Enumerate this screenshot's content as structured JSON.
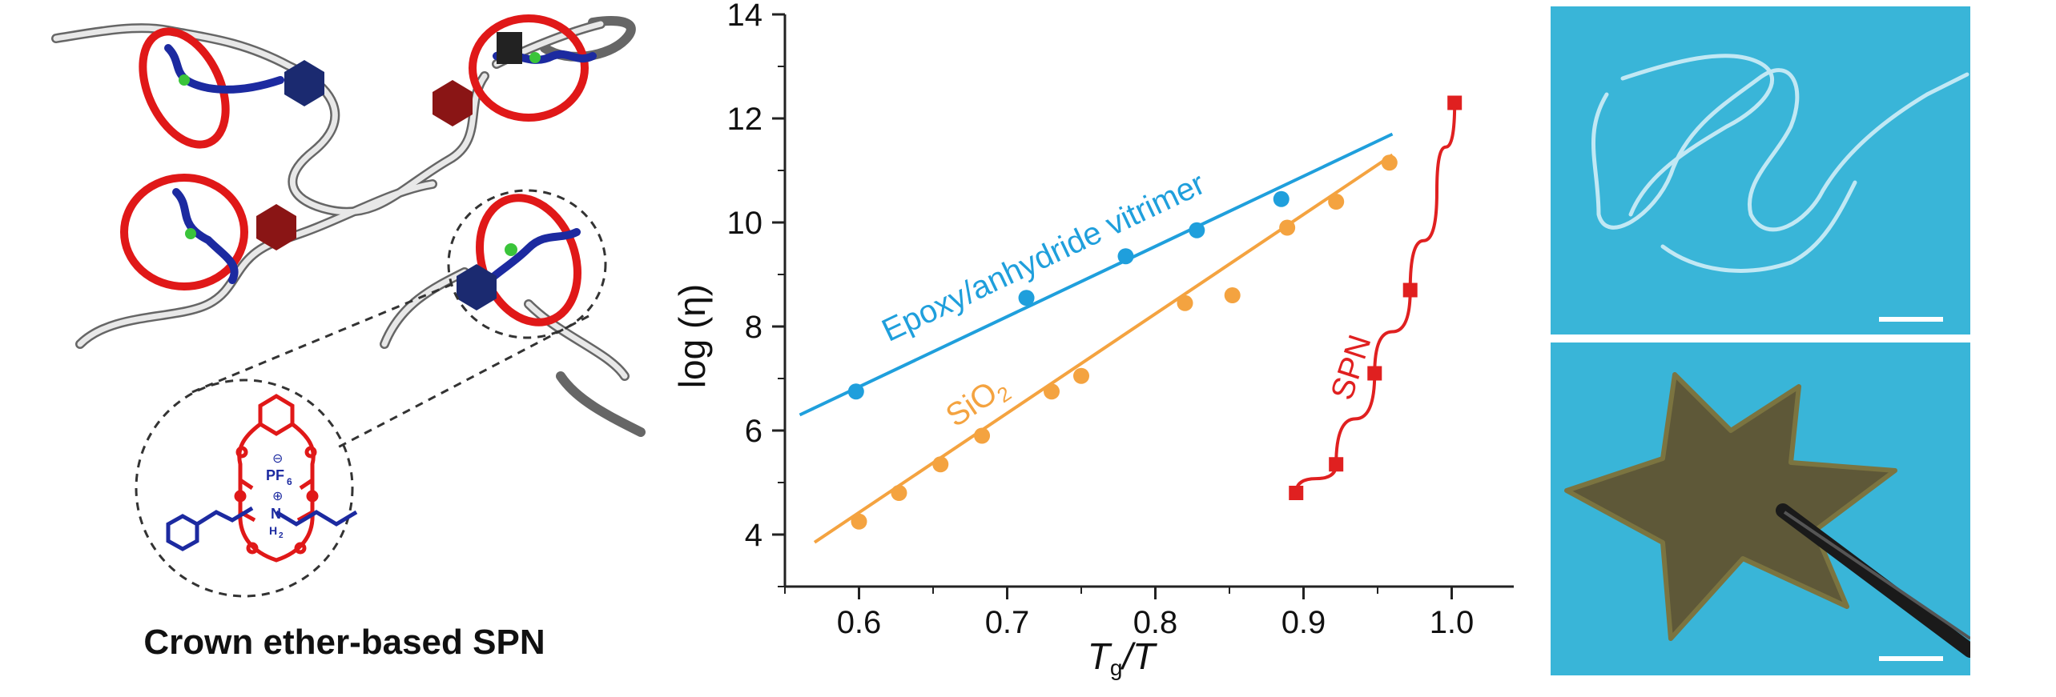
{
  "left_panel": {
    "caption": "Crown ether-based SPN",
    "inset_labels": {
      "anion": "PF",
      "anion_sub": "6",
      "anion_charge": "⊖",
      "cation": "N",
      "cation_h": "H",
      "cation_sub": "2",
      "cation_charge": "⊕"
    }
  },
  "chart_data": {
    "type": "scatter",
    "xlabel": "Tg/T",
    "xlabel_main": "T",
    "xlabel_sub": "g",
    "xlabel_tail": "/T",
    "ylabel": "log (η)",
    "xlim": [
      0.55,
      1.05
    ],
    "ylim": [
      3,
      14
    ],
    "x_ticks": [
      "0.6",
      "0.7",
      "0.8",
      "0.9",
      "1.0"
    ],
    "x_tick_values": [
      0.6,
      0.7,
      0.8,
      0.9,
      1.0
    ],
    "y_ticks": [
      "4",
      "6",
      "8",
      "10",
      "12",
      "14"
    ],
    "y_tick_values": [
      4,
      6,
      8,
      10,
      12,
      14
    ],
    "grid": false,
    "series": [
      {
        "name": "Epoxy/anhydride vitrimer",
        "color": "#1f9fdc",
        "marker": "circle",
        "points": [
          [
            0.598,
            6.75
          ],
          [
            0.713,
            8.55
          ],
          [
            0.78,
            9.35
          ],
          [
            0.828,
            9.85
          ],
          [
            0.885,
            10.45
          ]
        ],
        "fit": [
          [
            0.56,
            6.3
          ],
          [
            0.96,
            11.7
          ]
        ]
      },
      {
        "name": "SiO2",
        "name_main": "SiO",
        "name_sub": "2",
        "color": "#f4a340",
        "marker": "circle",
        "points": [
          [
            0.6,
            4.25
          ],
          [
            0.627,
            4.8
          ],
          [
            0.655,
            5.35
          ],
          [
            0.683,
            5.9
          ],
          [
            0.73,
            6.75
          ],
          [
            0.75,
            7.05
          ],
          [
            0.82,
            8.45
          ],
          [
            0.852,
            8.6
          ],
          [
            0.889,
            9.9
          ],
          [
            0.922,
            10.4
          ],
          [
            0.958,
            11.15
          ]
        ],
        "fit": [
          [
            0.57,
            3.85
          ],
          [
            0.96,
            11.3
          ]
        ]
      },
      {
        "name": "SPN",
        "color": "#e02020",
        "marker": "square",
        "points": [
          [
            0.895,
            4.8
          ],
          [
            0.922,
            5.35
          ],
          [
            0.948,
            7.1
          ],
          [
            0.972,
            8.7
          ],
          [
            1.002,
            12.3
          ]
        ],
        "fit": [
          [
            0.895,
            4.8
          ],
          [
            0.922,
            5.35
          ],
          [
            0.948,
            7.1
          ],
          [
            0.972,
            8.7
          ],
          [
            0.99,
            10.6
          ],
          [
            1.002,
            12.3
          ]
        ]
      }
    ]
  },
  "right_panel": {
    "top_photo": "transparent film on blue background",
    "bottom_photo": "star-shaped film held by tweezers"
  }
}
